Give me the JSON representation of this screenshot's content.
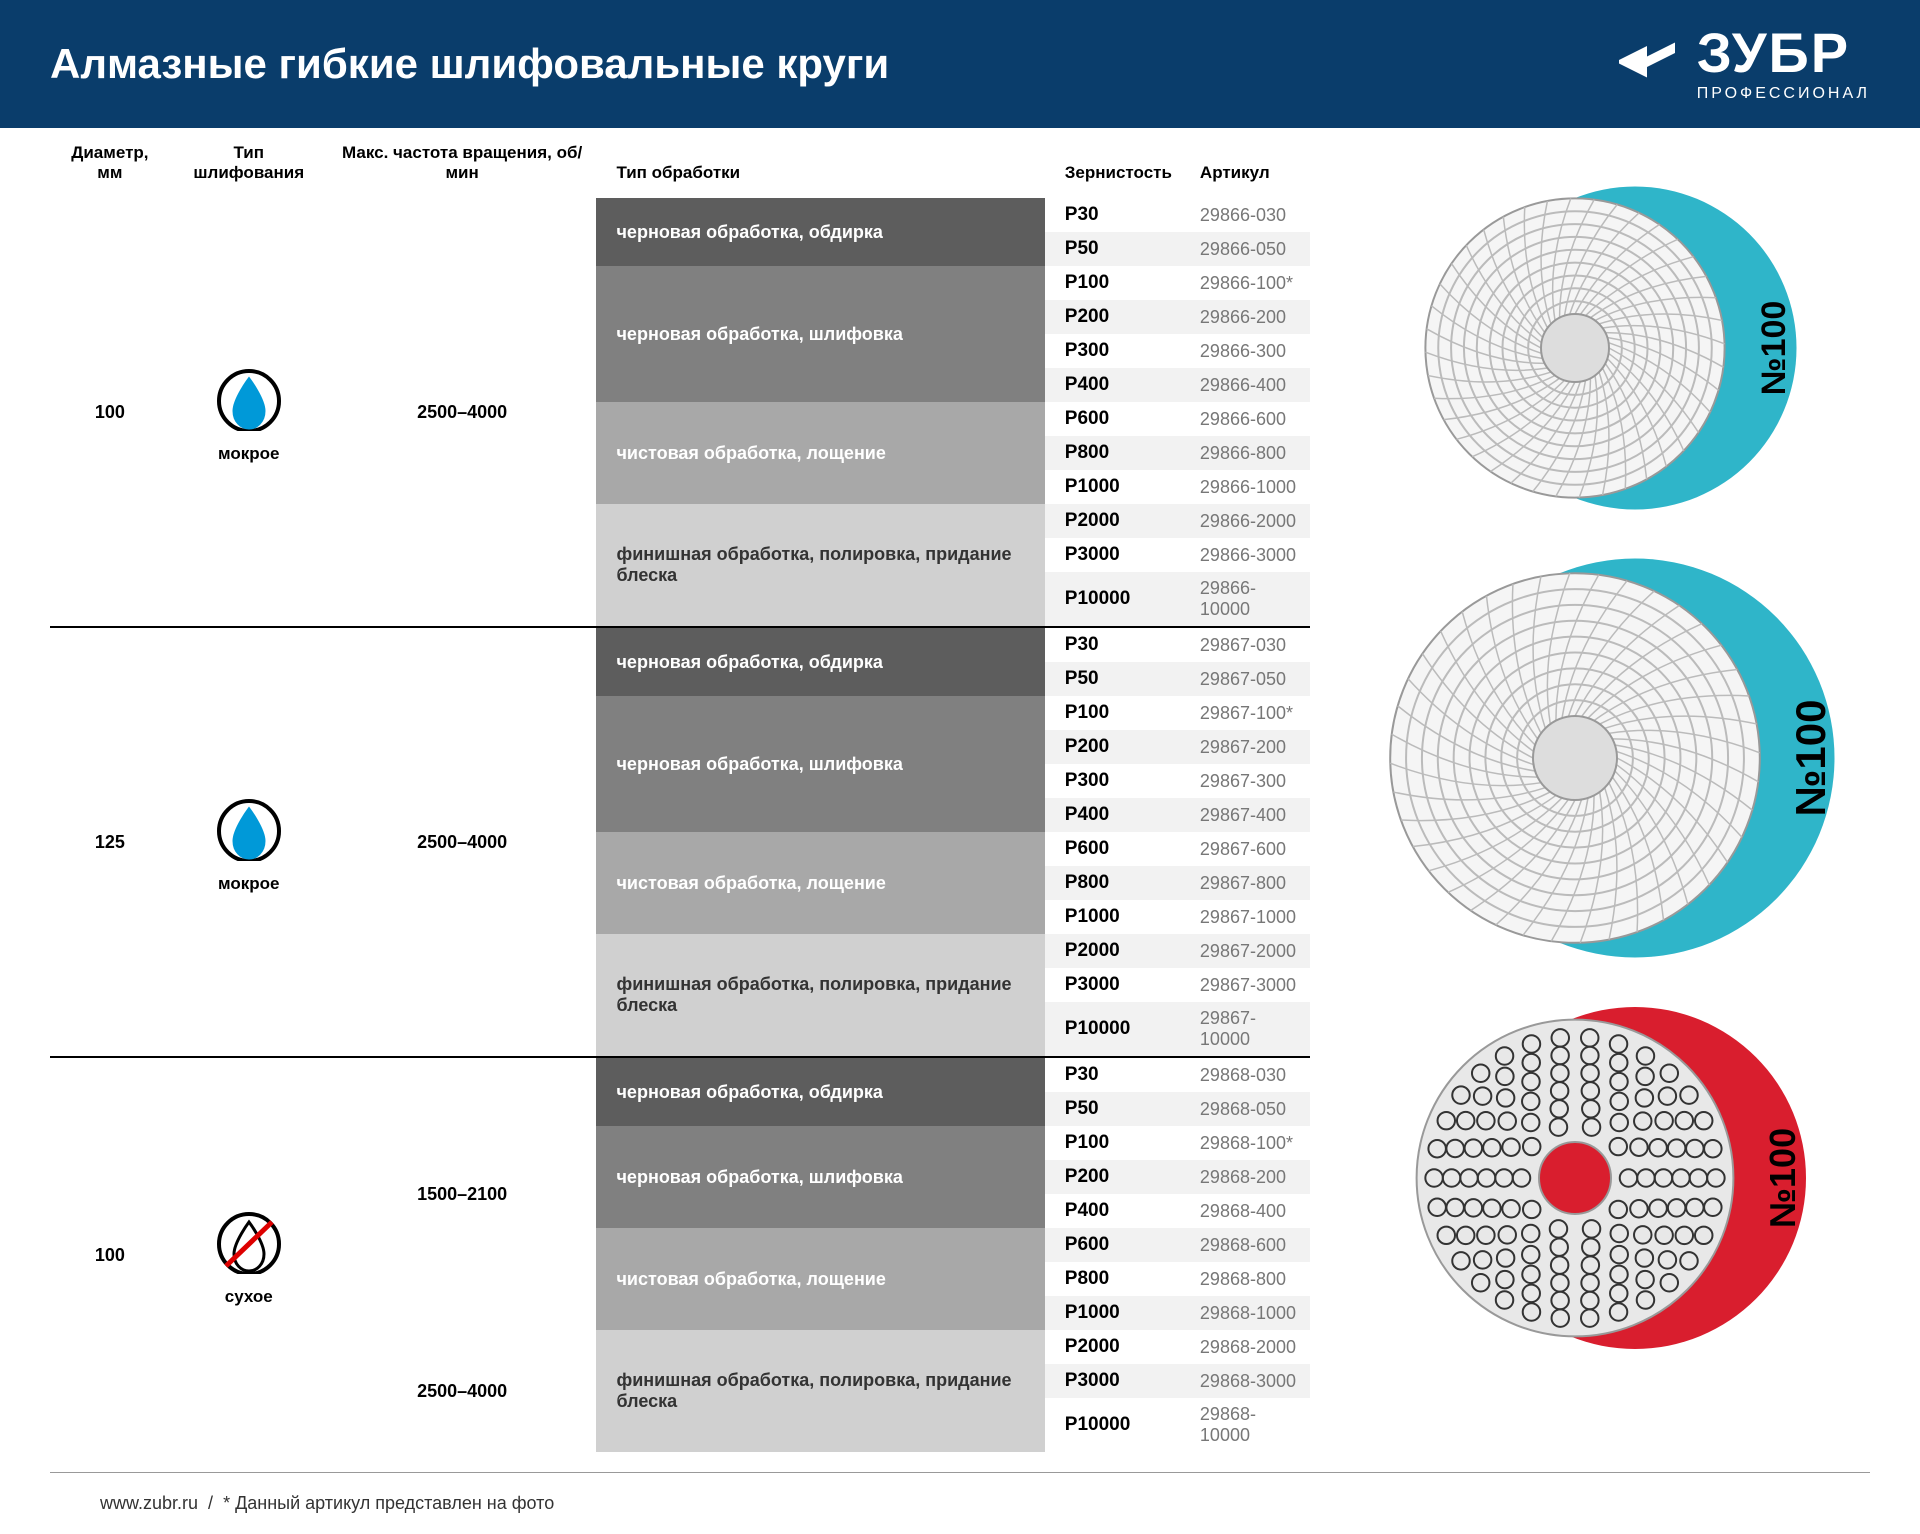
{
  "header": {
    "title": "Алмазные гибкие шлифовальные круги",
    "brand": "ЗУБР",
    "subbrand": "ПРОФЕССИОНАЛ"
  },
  "colors": {
    "header_bg": "#0a3d6b",
    "proc_bgs": [
      "#5d5d5d",
      "#808080",
      "#a8a8a8",
      "#d0d0d0"
    ],
    "stripe": "#f2f2f2",
    "wet_fill": "#0099d8",
    "dry_ring": "#000000",
    "disc_wet_back": "#2fb5c9",
    "disc_dry_back": "#d91e2e"
  },
  "columns": [
    "Диаметр, мм",
    "Тип шлифования",
    "Макс. частота вращения, об/мин",
    "Тип обработки",
    "Зернистость",
    "Артикул"
  ],
  "types": {
    "wet": "мокрое",
    "dry": "сухое"
  },
  "sections": [
    {
      "diameter": "100",
      "type": "wet",
      "rpm": "2500–4000",
      "disc_label": "№100",
      "groups": [
        {
          "proc": "черновая обработка, обдирка",
          "bg": 0,
          "rows": [
            [
              "P30",
              "29866-030"
            ],
            [
              "P50",
              "29866-050"
            ]
          ]
        },
        {
          "proc": "черновая обработка, шлифовка",
          "bg": 1,
          "rows": [
            [
              "P100",
              "29866-100*"
            ],
            [
              "P200",
              "29866-200"
            ],
            [
              "P300",
              "29866-300"
            ],
            [
              "P400",
              "29866-400"
            ]
          ]
        },
        {
          "proc": "чистовая обработка, лощение",
          "bg": 2,
          "rows": [
            [
              "P600",
              "29866-600"
            ],
            [
              "P800",
              "29866-800"
            ],
            [
              "P1000",
              "29866-1000"
            ]
          ]
        },
        {
          "proc": "финишная обработка, полировка, придание блеска",
          "bg": 3,
          "rows": [
            [
              "P2000",
              "29866-2000"
            ],
            [
              "P3000",
              "29866-3000"
            ],
            [
              "P10000",
              "29866-10000"
            ]
          ]
        }
      ]
    },
    {
      "diameter": "125",
      "type": "wet",
      "rpm": "2500–4000",
      "disc_label": "№100",
      "groups": [
        {
          "proc": "черновая обработка, обдирка",
          "bg": 0,
          "rows": [
            [
              "P30",
              "29867-030"
            ],
            [
              "P50",
              "29867-050"
            ]
          ]
        },
        {
          "proc": "черновая обработка, шлифовка",
          "bg": 1,
          "rows": [
            [
              "P100",
              "29867-100*"
            ],
            [
              "P200",
              "29867-200"
            ],
            [
              "P300",
              "29867-300"
            ],
            [
              "P400",
              "29867-400"
            ]
          ]
        },
        {
          "proc": "чистовая обработка, лощение",
          "bg": 2,
          "rows": [
            [
              "P600",
              "29867-600"
            ],
            [
              "P800",
              "29867-800"
            ],
            [
              "P1000",
              "29867-1000"
            ]
          ]
        },
        {
          "proc": "финишная обработка, полировка, придание блеска",
          "bg": 3,
          "rows": [
            [
              "P2000",
              "29867-2000"
            ],
            [
              "P3000",
              "29867-3000"
            ],
            [
              "P10000",
              "29867-10000"
            ]
          ]
        }
      ]
    },
    {
      "diameter": "100",
      "type": "dry",
      "rpm": [
        "1500–2100",
        "2500–4000"
      ],
      "rpm_split": 8,
      "disc_label": "№100",
      "groups": [
        {
          "proc": "черновая обработка, обдирка",
          "bg": 0,
          "rows": [
            [
              "P30",
              "29868-030"
            ],
            [
              "P50",
              "29868-050"
            ]
          ]
        },
        {
          "proc": "черновая обработка, шлифовка",
          "bg": 1,
          "rows": [
            [
              "P100",
              "29868-100*"
            ],
            [
              "P200",
              "29868-200"
            ],
            [
              "P400",
              "29868-400"
            ]
          ]
        },
        {
          "proc": "чистовая обработка, лощение",
          "bg": 2,
          "rows": [
            [
              "P600",
              "29868-600"
            ],
            [
              "P800",
              "29868-800"
            ],
            [
              "P1000",
              "29868-1000"
            ]
          ]
        },
        {
          "proc": "финишная обработка, полировка, придание блеска",
          "bg": 3,
          "rows": [
            [
              "P2000",
              "29868-2000"
            ],
            [
              "P3000",
              "29868-3000"
            ],
            [
              "P10000",
              "29868-10000"
            ]
          ]
        }
      ]
    }
  ],
  "disc_sizes": [
    340,
    420,
    360
  ],
  "footer": {
    "url": "www.zubr.ru",
    "note": "* Данный артикул представлен на фото"
  }
}
